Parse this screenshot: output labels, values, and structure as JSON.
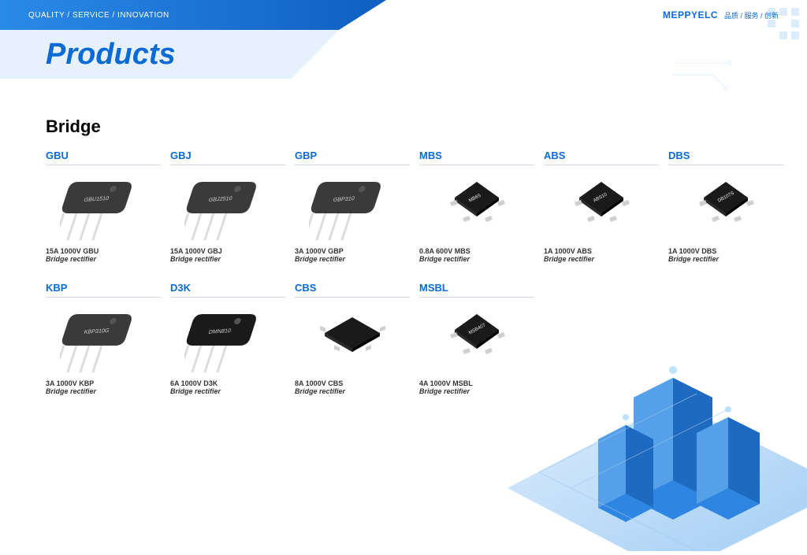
{
  "header": {
    "tagline_left": "QUALITY / SERVICE / INNOVATION",
    "logo": "MEPPYELC",
    "tagline_right": "品质 / 服务 / 创新"
  },
  "banner": {
    "title": "Products",
    "title_color": "#0a6bd6"
  },
  "section": {
    "title": "Bridge"
  },
  "colors": {
    "brand": "#0a6bd6",
    "banner_gradient_from": "#2a8ae8",
    "banner_gradient_to": "#0f5fc2",
    "divider": "#d0d7e2",
    "text": "#333333"
  },
  "products": [
    {
      "id": "gbu",
      "title": "GBU",
      "spec": "15A 1000V GBU",
      "desc": "Bridge rectifier",
      "chip_type": "leaded",
      "chip_color": "#3a3a3a",
      "label": "GBU1510"
    },
    {
      "id": "gbj",
      "title": "GBJ",
      "spec": "15A 1000V GBJ",
      "desc": "Bridge rectifier",
      "chip_type": "leaded",
      "chip_color": "#3a3a3a",
      "label": "GBJ2510"
    },
    {
      "id": "gbp",
      "title": "GBP",
      "spec": "3A 1000V GBP",
      "desc": "Bridge rectifier",
      "chip_type": "leaded",
      "chip_color": "#3a3a3a",
      "label": "GBP310"
    },
    {
      "id": "mbs",
      "title": "MBS",
      "spec": "0.8A 600V MBS",
      "desc": "Bridge rectifier",
      "chip_type": "smd",
      "chip_color": "#1a1a1a",
      "label": "MB6S"
    },
    {
      "id": "abs",
      "title": "ABS",
      "spec": "1A 1000V ABS",
      "desc": "Bridge rectifier",
      "chip_type": "smd",
      "chip_color": "#1a1a1a",
      "label": "ABS10"
    },
    {
      "id": "dbs",
      "title": "DBS",
      "spec": "1A 1000V DBS",
      "desc": "Bridge rectifier",
      "chip_type": "smd",
      "chip_color": "#1a1a1a",
      "label": "DB107S"
    },
    {
      "id": "kbp",
      "title": "KBP",
      "spec": "3A 1000V KBP",
      "desc": "Bridge rectifier",
      "chip_type": "leaded",
      "chip_color": "#3a3a3a",
      "label": "KBP310G"
    },
    {
      "id": "d3k",
      "title": "D3K",
      "spec": "6A 1000V D3K",
      "desc": "Bridge rectifier",
      "chip_type": "leaded",
      "chip_color": "#1a1a1a",
      "label": "DMN810"
    },
    {
      "id": "cbs",
      "title": "CBS",
      "spec": "8A 1000V CBS",
      "desc": "Bridge rectifier",
      "chip_type": "smd-flat",
      "chip_color": "#1a1a1a",
      "label": ""
    },
    {
      "id": "msbl",
      "title": "MSBL",
      "spec": "4A 1000V MSBL",
      "desc": "Bridge rectifier",
      "chip_type": "smd",
      "chip_color": "#1a1a1a",
      "label": "MSB407"
    }
  ],
  "layout": {
    "grid_cols": 6,
    "row1_order": [
      "gbu",
      "gbj",
      "gbp",
      "mbs",
      "abs",
      "dbs"
    ],
    "row2_order": [
      "kbp",
      "d3k",
      "cbs",
      "msbl"
    ]
  }
}
